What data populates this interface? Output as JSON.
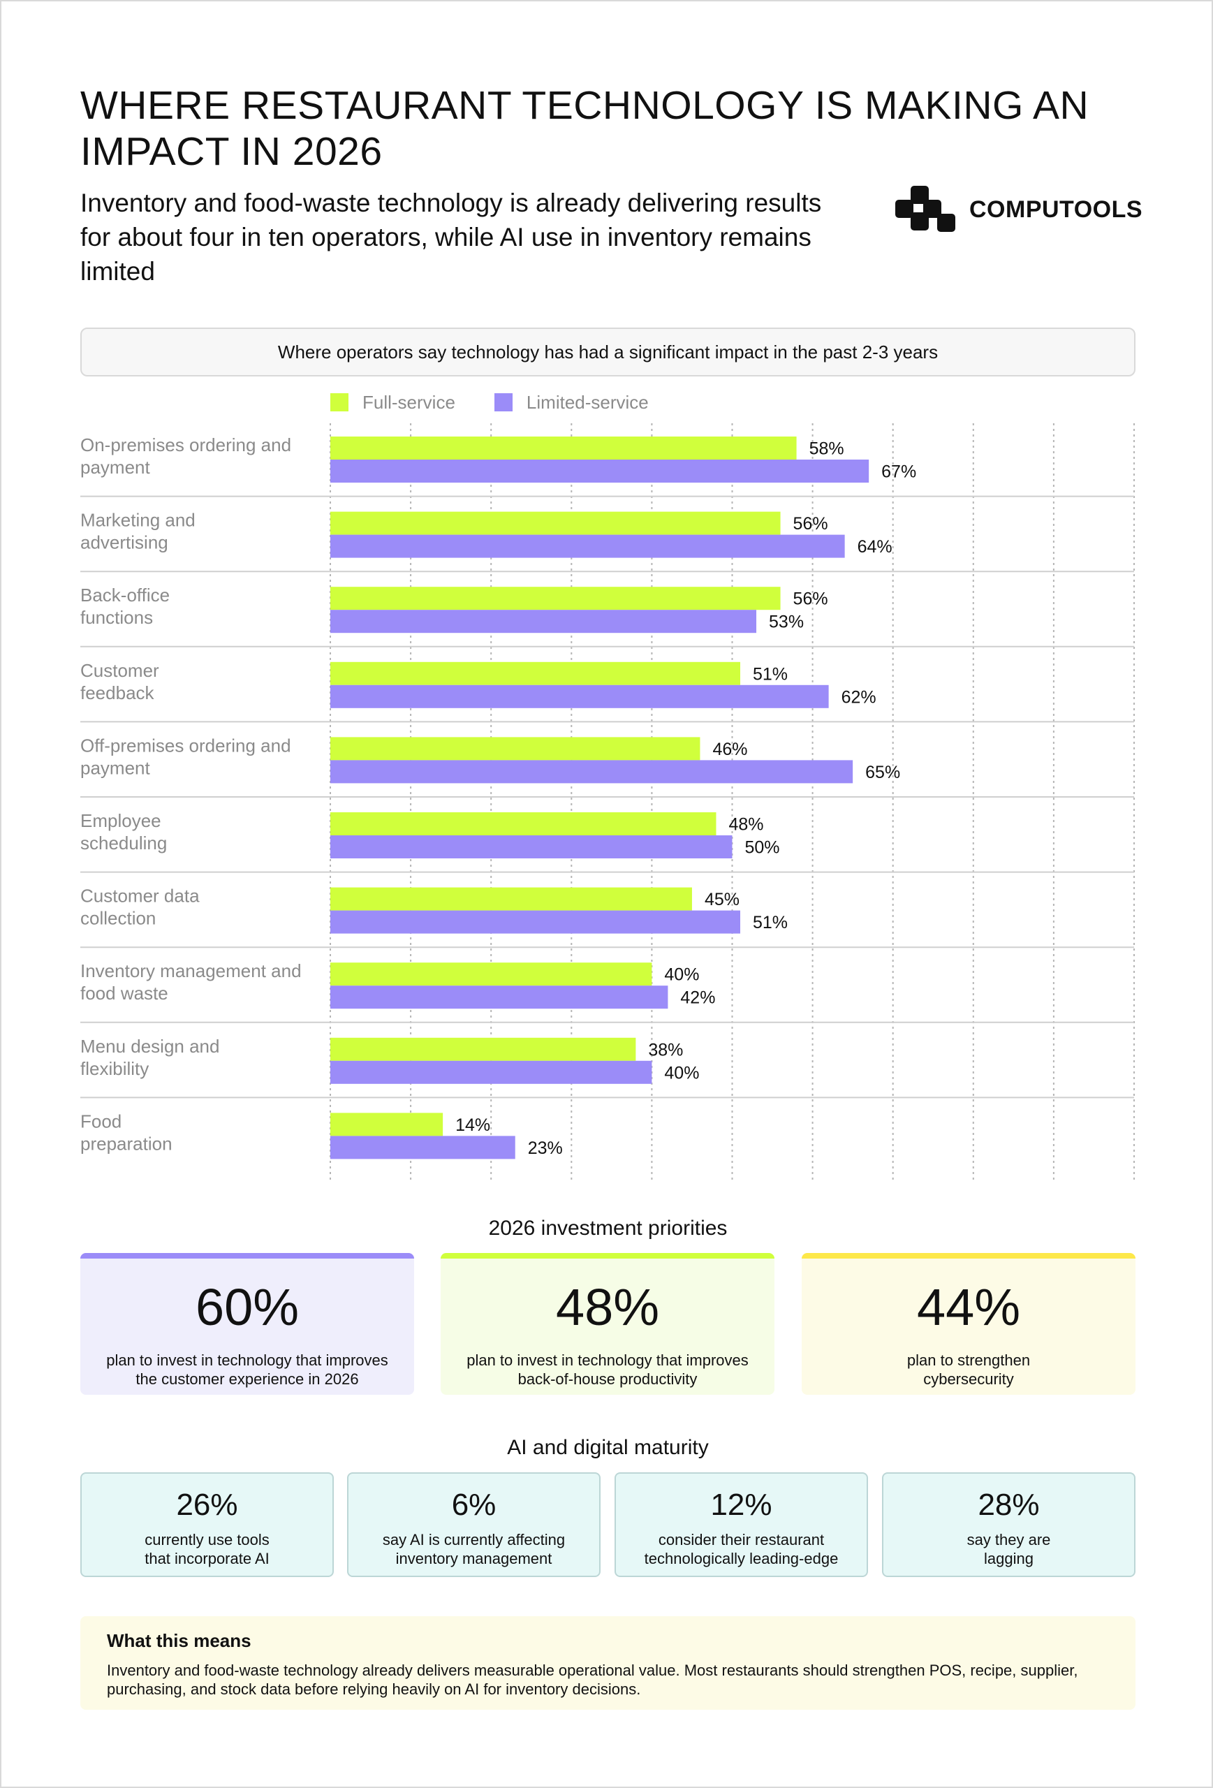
{
  "title": "WHERE RESTAURANT TECHNOLOGY IS MAKING AN IMPACT IN 2026",
  "subtitle": "Inventory and food-waste technology is already delivering results for about four in ten operators, while AI use in inventory remains limited",
  "logo": {
    "text": "COMPUTOOLS"
  },
  "colors": {
    "full_service": "#d0ff3c",
    "limited_service": "#9b8cf8",
    "cyber": "#fde84a"
  },
  "chart_data": {
    "type": "bar",
    "orientation": "horizontal",
    "title": "Where operators say technology has had a significant impact in the past 2-3 years",
    "categories": [
      "On-premises ordering and payment",
      "Marketing and advertising",
      "Back-office functions",
      "Customer feedback",
      "Off-premises ordering and payment",
      "Employee scheduling",
      "Customer data collection",
      "Inventory management and food waste",
      "Menu design and flexibility",
      "Food preparation"
    ],
    "category_lines": [
      [
        "On-premises ordering and",
        "payment"
      ],
      [
        "Marketing and",
        "advertising"
      ],
      [
        "Back-office",
        "functions"
      ],
      [
        "Customer",
        "feedback"
      ],
      [
        "Off-premises ordering and",
        "payment"
      ],
      [
        "Employee",
        "scheduling"
      ],
      [
        "Customer data",
        "collection"
      ],
      [
        "Inventory management and",
        "food waste"
      ],
      [
        "Menu design and",
        "flexibility"
      ],
      [
        "Food",
        "preparation"
      ]
    ],
    "series": [
      {
        "name": "Full-service",
        "values": [
          58,
          56,
          56,
          51,
          46,
          48,
          45,
          40,
          38,
          14
        ]
      },
      {
        "name": "Limited-service",
        "values": [
          67,
          64,
          53,
          62,
          65,
          50,
          51,
          42,
          40,
          23
        ]
      }
    ],
    "value_suffix": "%",
    "xlim": [
      0,
      100
    ],
    "grid": true,
    "legend": "top"
  },
  "priorities": {
    "title": "2026 investment priorities",
    "cards": [
      {
        "value": "60%",
        "desc": "plan to invest in technology that improves the customer experience in 2026"
      },
      {
        "value": "48%",
        "desc": "plan to invest in technology that improves back-of-house productivity"
      },
      {
        "value": "44%",
        "desc": "plan to strengthen cybersecurity"
      }
    ]
  },
  "maturity": {
    "title": "AI and digital maturity",
    "cards": [
      {
        "value": "26%",
        "desc": "currently use tools that incorporate AI"
      },
      {
        "value": "6%",
        "desc": "say AI is currently affecting inventory management"
      },
      {
        "value": "12%",
        "desc": "consider their restaurant technologically leading-edge"
      },
      {
        "value": "28%",
        "desc": "say they are lagging"
      }
    ]
  },
  "means": {
    "title": "What this means",
    "body": "Inventory and food-waste technology already delivers measurable operational value. Most restaurants should strengthen POS, recipe, supplier, purchasing, and stock data before relying heavily on AI for inventory decisions."
  }
}
